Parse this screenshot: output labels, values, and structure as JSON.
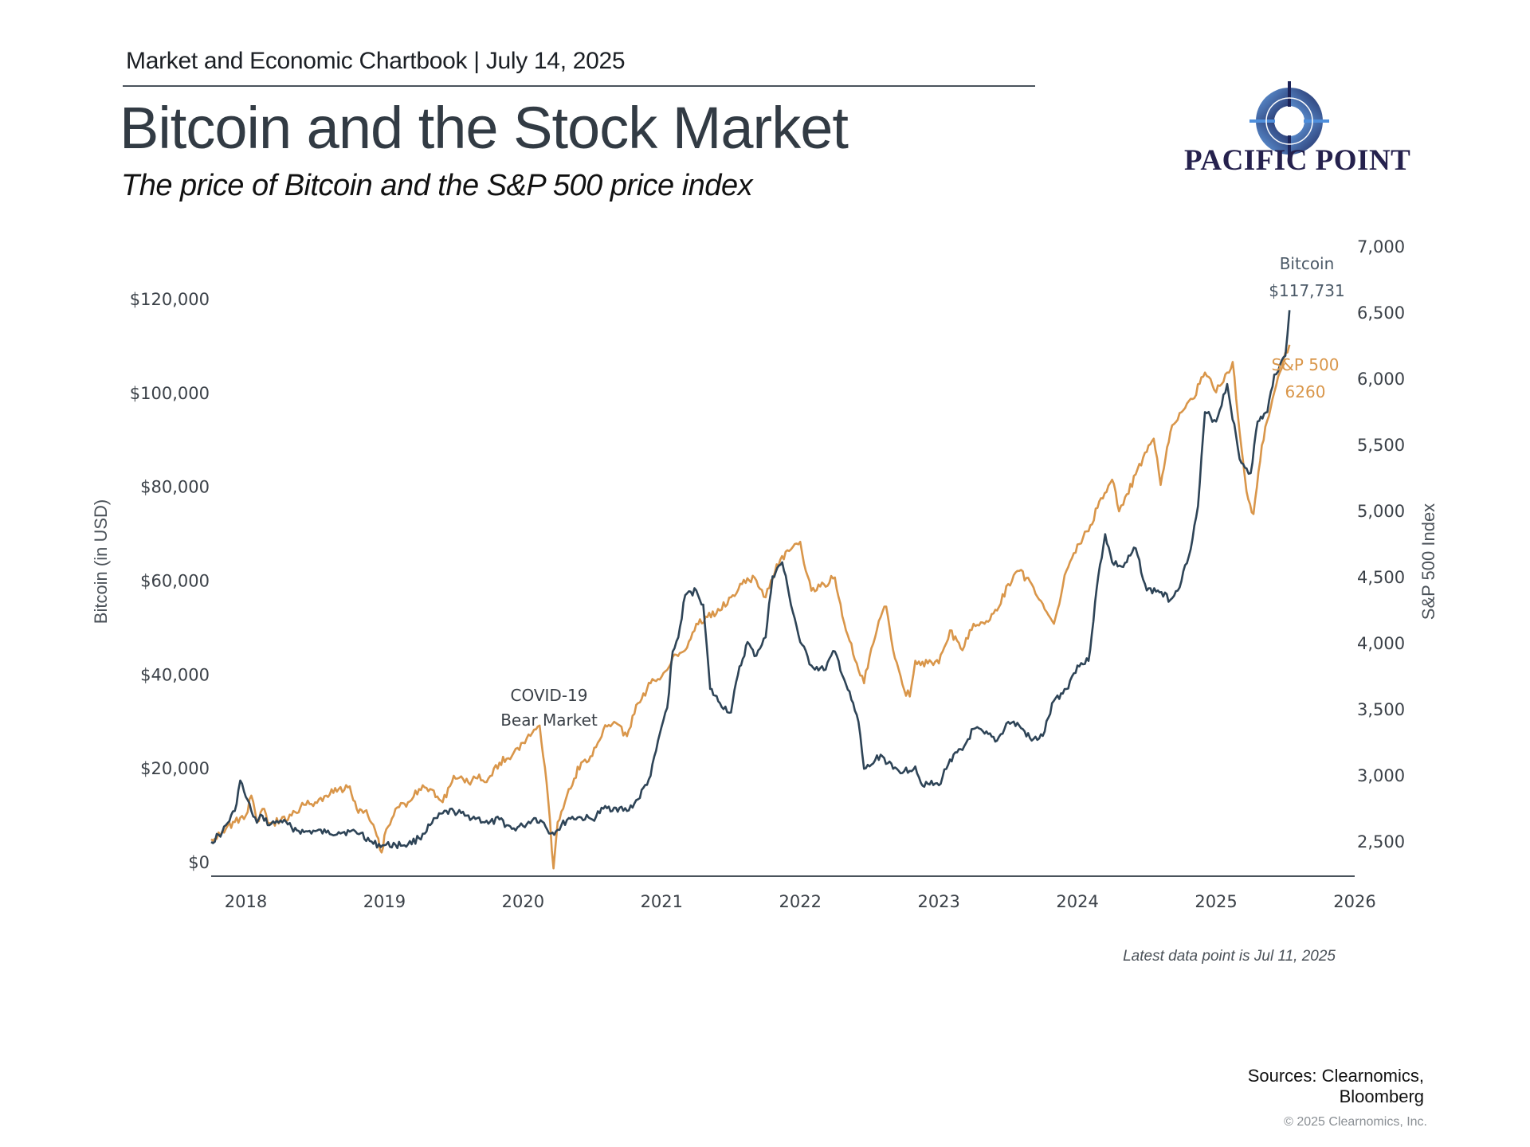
{
  "header": {
    "kicker": "Market and Economic Chartbook | July 14, 2025",
    "title": "Bitcoin and the Stock Market",
    "subtitle": "The price of Bitcoin and the S&P 500 price index"
  },
  "brand": {
    "name": "PACIFIC POINT",
    "icon": "compass-icon",
    "colors": {
      "dark": "#25214d",
      "light": "#4f8fdc"
    }
  },
  "footer": {
    "note": "Latest data point is Jul 11, 2025",
    "sources_line1": "Sources: Clearnomics,",
    "sources_line2": "Bloomberg",
    "copyright": "© 2025 Clearnomics, Inc."
  },
  "chart_data": {
    "type": "line",
    "title": "Bitcoin and the Stock Market",
    "subtitle": "The price of Bitcoin and the S&P 500 price index",
    "xlabel": "",
    "ylabel": "Bitcoin (in USD)",
    "y2label": "S&P 500 Index",
    "xlim": [
      2017.75,
      2026.0
    ],
    "ylim": [
      0,
      120000
    ],
    "y2lim": [
      2200,
      7000
    ],
    "grid": false,
    "x_ticks": [
      "2018",
      "2019",
      "2020",
      "2021",
      "2022",
      "2023",
      "2024",
      "2025",
      "2026"
    ],
    "x_tick_values": [
      2018,
      2019,
      2020,
      2021,
      2022,
      2023,
      2024,
      2025,
      2026
    ],
    "y_ticks": [
      "$0",
      "$20,000",
      "$40,000",
      "$60,000",
      "$80,000",
      "$100,000",
      "$120,000"
    ],
    "y_tick_values": [
      0,
      20000,
      40000,
      60000,
      80000,
      100000,
      120000
    ],
    "y2_ticks": [
      "2,500",
      "3,000",
      "3,500",
      "4,000",
      "4,500",
      "5,000",
      "5,500",
      "6,000",
      "6,500",
      "7,000"
    ],
    "y2_tick_values": [
      2500,
      3000,
      3500,
      4000,
      4500,
      5000,
      5500,
      6000,
      6500,
      7000
    ],
    "colors": {
      "bitcoin": "#2e4457",
      "sp500": "#d9964a"
    },
    "annotations": [
      {
        "id": "covid",
        "line1": "COVID-19",
        "line2": "Bear Market",
        "x": 2020.2,
        "y_sp": 3500
      },
      {
        "id": "btc-end",
        "line1": "Bitcoin",
        "line2": "$117,731"
      },
      {
        "id": "sp-end",
        "line1": "S&P 500",
        "line2": "6260"
      }
    ],
    "series": [
      {
        "name": "Bitcoin",
        "axis": "left",
        "x": [
          2017.75,
          2017.83,
          2017.92,
          2017.96,
          2018.0,
          2018.04,
          2018.08,
          2018.12,
          2018.17,
          2018.25,
          2018.33,
          2018.42,
          2018.5,
          2018.58,
          2018.67,
          2018.75,
          2018.83,
          2018.92,
          2019.0,
          2019.08,
          2019.17,
          2019.25,
          2019.33,
          2019.42,
          2019.5,
          2019.58,
          2019.67,
          2019.75,
          2019.83,
          2019.92,
          2020.0,
          2020.08,
          2020.15,
          2020.2,
          2020.25,
          2020.33,
          2020.42,
          2020.5,
          2020.58,
          2020.67,
          2020.75,
          2020.83,
          2020.92,
          2021.0,
          2021.04,
          2021.08,
          2021.12,
          2021.17,
          2021.25,
          2021.3,
          2021.35,
          2021.42,
          2021.5,
          2021.55,
          2021.62,
          2021.67,
          2021.75,
          2021.8,
          2021.87,
          2021.92,
          2022.0,
          2022.08,
          2022.17,
          2022.25,
          2022.33,
          2022.42,
          2022.46,
          2022.5,
          2022.58,
          2022.67,
          2022.75,
          2022.83,
          2022.87,
          2022.92,
          2023.0,
          2023.08,
          2023.17,
          2023.25,
          2023.33,
          2023.42,
          2023.5,
          2023.58,
          2023.67,
          2023.75,
          2023.83,
          2023.92,
          2024.0,
          2024.08,
          2024.15,
          2024.2,
          2024.25,
          2024.33,
          2024.42,
          2024.5,
          2024.58,
          2024.67,
          2024.75,
          2024.83,
          2024.87,
          2024.92,
          2025.0,
          2025.08,
          2025.17,
          2025.22,
          2025.25,
          2025.3,
          2025.37,
          2025.42,
          2025.46,
          2025.5,
          2025.53
        ],
        "values": [
          4400,
          6500,
          11000,
          17500,
          14000,
          11000,
          8500,
          10000,
          8000,
          9000,
          7500,
          6500,
          6700,
          6400,
          6500,
          6600,
          6300,
          4000,
          3700,
          3800,
          3900,
          5200,
          8000,
          10500,
          11000,
          10000,
          9500,
          8300,
          9200,
          7200,
          7800,
          9500,
          8500,
          6200,
          7000,
          9500,
          9600,
          9200,
          11500,
          11700,
          11000,
          13500,
          18500,
          29000,
          33000,
          45000,
          48000,
          57000,
          58000,
          55000,
          37000,
          34000,
          32000,
          40000,
          47000,
          44000,
          48000,
          61000,
          64000,
          57000,
          47000,
          42000,
          41000,
          45000,
          38000,
          30000,
          20000,
          20500,
          23000,
          20000,
          19500,
          20500,
          17000,
          16800,
          16500,
          22000,
          24000,
          28500,
          27500,
          26000,
          30000,
          29200,
          26000,
          27000,
          34500,
          37000,
          42000,
          43000,
          61000,
          70000,
          64000,
          63000,
          67000,
          58000,
          58000,
          56000,
          60000,
          69000,
          76000,
          96000,
          94000,
          102000,
          86000,
          84000,
          83000,
          94000,
          96000,
          104000,
          106000,
          108000,
          117731
        ]
      },
      {
        "name": "S&P 500",
        "axis": "right",
        "x": [
          2017.75,
          2017.83,
          2017.92,
          2018.0,
          2018.04,
          2018.08,
          2018.12,
          2018.17,
          2018.25,
          2018.33,
          2018.42,
          2018.5,
          2018.58,
          2018.67,
          2018.75,
          2018.8,
          2018.87,
          2018.92,
          2018.98,
          2019.0,
          2019.08,
          2019.17,
          2019.25,
          2019.33,
          2019.42,
          2019.5,
          2019.58,
          2019.67,
          2019.75,
          2019.83,
          2019.92,
          2020.0,
          2020.08,
          2020.12,
          2020.17,
          2020.22,
          2020.25,
          2020.33,
          2020.42,
          2020.5,
          2020.58,
          2020.67,
          2020.75,
          2020.83,
          2020.92,
          2021.0,
          2021.08,
          2021.17,
          2021.25,
          2021.33,
          2021.42,
          2021.5,
          2021.58,
          2021.67,
          2021.75,
          2021.83,
          2021.92,
          2022.0,
          2022.04,
          2022.08,
          2022.17,
          2022.25,
          2022.33,
          2022.42,
          2022.46,
          2022.5,
          2022.58,
          2022.62,
          2022.67,
          2022.75,
          2022.79,
          2022.83,
          2022.92,
          2023.0,
          2023.08,
          2023.17,
          2023.25,
          2023.33,
          2023.42,
          2023.5,
          2023.58,
          2023.67,
          2023.75,
          2023.83,
          2023.92,
          2024.0,
          2024.08,
          2024.17,
          2024.25,
          2024.3,
          2024.33,
          2024.42,
          2024.5,
          2024.55,
          2024.6,
          2024.67,
          2024.75,
          2024.83,
          2024.92,
          2025.0,
          2025.08,
          2025.12,
          2025.17,
          2025.22,
          2025.27,
          2025.33,
          2025.42,
          2025.5,
          2025.53
        ],
        "values": [
          2520,
          2580,
          2650,
          2700,
          2850,
          2650,
          2750,
          2640,
          2660,
          2700,
          2780,
          2800,
          2850,
          2900,
          2920,
          2750,
          2740,
          2630,
          2420,
          2550,
          2750,
          2800,
          2900,
          2900,
          2800,
          3000,
          2950,
          2980,
          2980,
          3100,
          3150,
          3250,
          3350,
          3380,
          2950,
          2300,
          2650,
          2900,
          3100,
          3150,
          3350,
          3400,
          3300,
          3550,
          3700,
          3750,
          3900,
          3950,
          4150,
          4200,
          4250,
          4350,
          4450,
          4500,
          4350,
          4600,
          4700,
          4770,
          4550,
          4400,
          4450,
          4500,
          4100,
          3800,
          3700,
          3900,
          4200,
          4280,
          3950,
          3650,
          3600,
          3870,
          3850,
          3850,
          4100,
          3950,
          4150,
          4150,
          4250,
          4450,
          4550,
          4450,
          4300,
          4150,
          4550,
          4750,
          4850,
          5100,
          5240,
          5000,
          5050,
          5280,
          5450,
          5550,
          5200,
          5600,
          5750,
          5850,
          6050,
          5900,
          6050,
          6130,
          5600,
          5150,
          4980,
          5500,
          5900,
          6200,
          6260
        ]
      }
    ]
  }
}
